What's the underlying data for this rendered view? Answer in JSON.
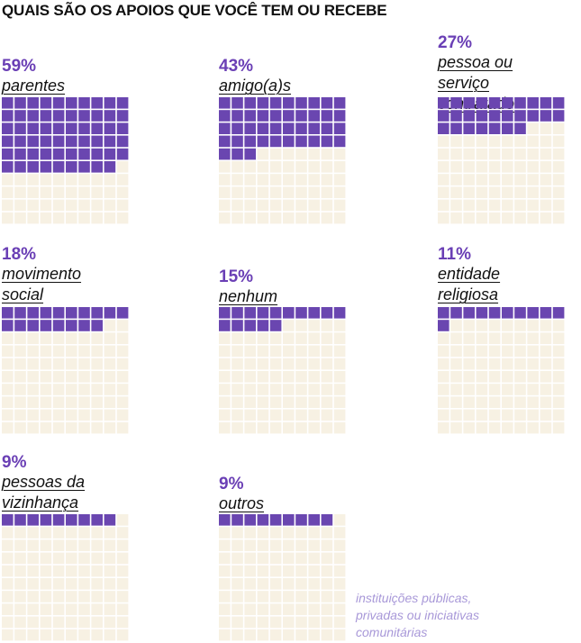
{
  "title": "QUAIS SÃO OS APOIOS QUE VOCÊ TEM OU RECEBE",
  "note": "instituições públicas,\nprivadas ou iniciativas\ncomunitárias",
  "colors": {
    "filled": "#6a46b0",
    "empty": "#f7f1e3",
    "accent": "#6a3fb5",
    "note": "#a898d8"
  },
  "chart_data": {
    "type": "waffle",
    "title": "QUAIS SÃO OS APOIOS QUE VOCÊ TEM OU RECEBE",
    "grid": [
      10,
      10
    ],
    "unit": "%",
    "categories": [
      "parentes",
      "amigo(a)s",
      "pessoa ou serviço contratado",
      "movimento social",
      "nenhum",
      "entidade religiosa",
      "pessoas da vizinhança",
      "outros"
    ],
    "values": [
      59,
      43,
      27,
      18,
      15,
      11,
      9,
      9
    ],
    "panels": [
      {
        "pct": "59%",
        "value": 59,
        "label": "parentes"
      },
      {
        "pct": "43%",
        "value": 43,
        "label": "amigo(a)s"
      },
      {
        "pct": "27%",
        "value": 27,
        "label": "pessoa ou serviço\ncontratado"
      },
      {
        "pct": "18%",
        "value": 18,
        "label": "movimento\nsocial"
      },
      {
        "pct": "15%",
        "value": 15,
        "label": "nenhum"
      },
      {
        "pct": "11%",
        "value": 11,
        "label": "entidade\nreligiosa"
      },
      {
        "pct": "9%",
        "value": 9,
        "label": "pessoas da\nvizinhança"
      },
      {
        "pct": "9%",
        "value": 9,
        "label": "outros"
      }
    ]
  }
}
